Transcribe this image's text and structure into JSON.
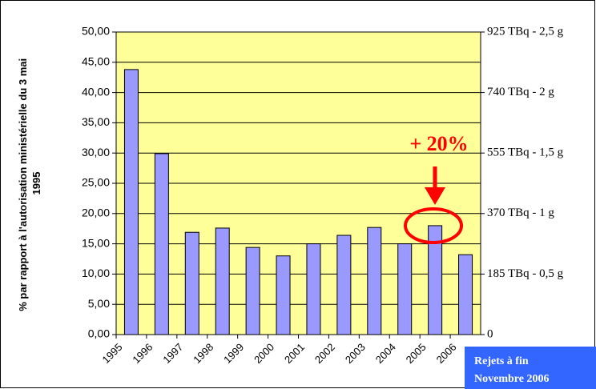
{
  "chart_data": {
    "type": "bar",
    "ylabel": [
      "% par rapport à l'autorisation ministérielle du 3 mai",
      "1995"
    ],
    "categories": [
      "1995",
      "1996",
      "1997",
      "1998",
      "1999",
      "2000",
      "2001",
      "2002",
      "2003",
      "2004",
      "2005",
      "2006"
    ],
    "values": [
      43.8,
      29.9,
      16.9,
      17.6,
      14.4,
      13.0,
      15.0,
      16.4,
      17.7,
      15.0,
      18.0,
      13.2
    ],
    "color": "#9999ff",
    "ylim": [
      0,
      50
    ],
    "yticks": [
      {
        "value": 0,
        "label": "0,00"
      },
      {
        "value": 5,
        "label": "5,00"
      },
      {
        "value": 10,
        "label": "10,00"
      },
      {
        "value": 15,
        "label": "15,00"
      },
      {
        "value": 20,
        "label": "20,00"
      },
      {
        "value": 25,
        "label": "25,00"
      },
      {
        "value": 30,
        "label": "30,00"
      },
      {
        "value": 35,
        "label": "35,00"
      },
      {
        "value": 40,
        "label": "40,00"
      },
      {
        "value": 45,
        "label": "45,00"
      },
      {
        "value": 50,
        "label": "50,00"
      }
    ],
    "y2lim": [
      0,
      925
    ],
    "y2ticks": [
      {
        "value": 0,
        "label": "0"
      },
      {
        "value": 185,
        "label": "185 TBq - 0,5 g"
      },
      {
        "value": 370,
        "label": "370 TBq  - 1 g"
      },
      {
        "value": 555,
        "label": "555 TBq - 1,5 g"
      },
      {
        "value": 740,
        "label": "740 TBq - 2 g"
      },
      {
        "value": 925,
        "label": "925 TBq - 2,5 g"
      }
    ],
    "grid": true,
    "annotation": "+ 20%",
    "note": [
      "Rejets à fin",
      "Novembre 2006"
    ]
  }
}
